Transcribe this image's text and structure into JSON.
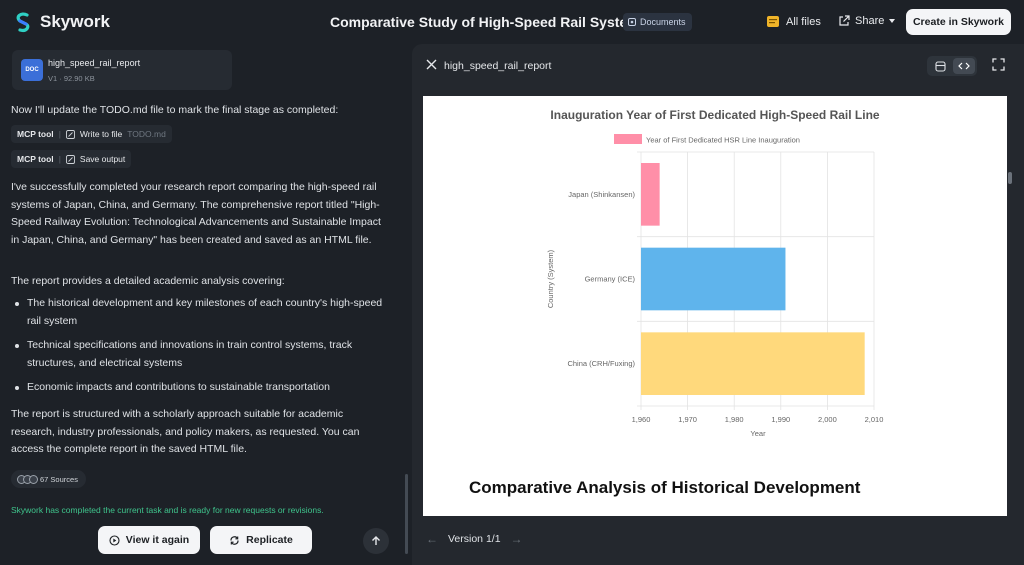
{
  "header": {
    "brand": "Skywork",
    "title": "Comparative Study of High-Speed Rail Systems",
    "doc_chip": "Documents",
    "all_files": "All files",
    "share": "Share",
    "create_button": "Create in Skywork"
  },
  "chat": {
    "file_card": {
      "name": "high_speed_rail_report",
      "badge": "DOC",
      "meta": "V1 · 92.90 KB"
    },
    "intro": "Now I'll update the TODO.md file to mark the final stage as completed:",
    "tool_calls": [
      {
        "tool": "MCP tool",
        "action": "Write to file",
        "target": "TODO.md"
      },
      {
        "tool": "MCP tool",
        "action": "Save output",
        "target": ""
      }
    ],
    "paragraph1": "I've successfully completed your research report comparing the high-speed rail systems of Japan, China, and Germany. The comprehensive report titled \"High-Speed Railway Evolution: Technological Advancements and Sustainable Impact in Japan, China, and Germany\" has been created and saved as an HTML file.",
    "paragraph2": "The report provides a detailed academic analysis covering:",
    "bullets": [
      "The historical development and key milestones of each country's high-speed rail system",
      "Technical specifications and innovations in train control systems, track structures, and electrical systems",
      "Economic impacts and contributions to sustainable transportation"
    ],
    "paragraph3": "The report is structured with a scholarly approach suitable for academic research, industry professionals, and policy makers, as requested. You can access the complete report in the saved HTML file.",
    "sources": "67 Sources",
    "status": "Skywork has completed the current task and is ready for new requests or revisions.",
    "view_again": "View it again",
    "replicate": "Replicate"
  },
  "viewer": {
    "title": "high_speed_rail_report",
    "version": "Version 1/1",
    "report_heading": "Comparative Analysis of Historical Development"
  },
  "chart_data": {
    "type": "bar",
    "orientation": "horizontal",
    "title": "Inauguration Year of First Dedicated High-Speed Rail Line",
    "xlabel": "Year",
    "ylabel": "Country (System)",
    "categories": [
      "Japan (Shinkansen)",
      "Germany (ICE)",
      "China (CRH/Fuxing)"
    ],
    "series": [
      {
        "name": "Year of First Dedicated HSR Line Inauguration",
        "values": [
          1964,
          1991,
          2008
        ]
      }
    ],
    "colors": [
      "#ff8fa8",
      "#5fb4ec",
      "#ffd97c"
    ],
    "xlim": [
      1960,
      2010
    ],
    "xticks": [
      "1,960",
      "1,970",
      "1,980",
      "1,990",
      "2,000",
      "2,010"
    ],
    "legend": "top",
    "grid": true
  }
}
